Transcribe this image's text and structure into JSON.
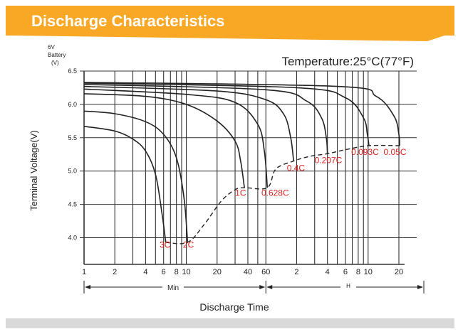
{
  "header": {
    "title": "Discharge Characteristics"
  },
  "chart_data": {
    "type": "line",
    "battery_label": [
      "6V",
      "Battery",
      "(V)"
    ],
    "temperature": "Temperature:25°C(77°F)",
    "ylabel": "Terminal Voltage(V)",
    "xlabel": "Discharge Time",
    "x_scale": "log",
    "y_ticks": [
      4.0,
      4.5,
      5.0,
      5.5,
      6.0,
      6.5
    ],
    "y_tick_labels": [
      "4.0",
      "4.5",
      "5.0",
      "5.5",
      "6.0",
      "6.5"
    ],
    "ylim": [
      3.6,
      6.5
    ],
    "x_ticks_min": [
      1,
      2,
      4,
      6,
      8,
      10,
      20,
      40,
      60,
      120,
      240,
      360,
      480,
      600,
      1200
    ],
    "x_tick_labels": [
      "1",
      "2",
      "4",
      "6",
      "8",
      "10",
      "20",
      "40",
      "60",
      "2",
      "4",
      "6",
      "8",
      "10",
      "20"
    ],
    "xlim_min": [
      1,
      1200
    ],
    "x_unit_labels": [
      "Min",
      "H"
    ],
    "grid": true,
    "grid_x_min": [
      1,
      2,
      3,
      4,
      5,
      6,
      7,
      8,
      9,
      10,
      20,
      30,
      40,
      50,
      60,
      120,
      180,
      240,
      300,
      360,
      420,
      480,
      540,
      600,
      1200
    ],
    "series": [
      {
        "name": "3C",
        "points": [
          [
            1,
            5.67
          ],
          [
            2,
            5.6
          ],
          [
            3,
            5.48
          ],
          [
            4,
            5.3
          ],
          [
            5,
            4.95
          ],
          [
            5.8,
            4.35
          ],
          [
            6.3,
            3.93
          ]
        ]
      },
      {
        "name": "2C",
        "points": [
          [
            1,
            5.9
          ],
          [
            2,
            5.86
          ],
          [
            4,
            5.74
          ],
          [
            6,
            5.55
          ],
          [
            8,
            5.2
          ],
          [
            9.5,
            4.6
          ],
          [
            10.3,
            3.93
          ]
        ]
      },
      {
        "name": "1C",
        "points": [
          [
            1,
            6.16
          ],
          [
            4,
            6.12
          ],
          [
            10,
            6.0
          ],
          [
            20,
            5.75
          ],
          [
            30,
            5.45
          ],
          [
            34,
            5.15
          ],
          [
            37,
            4.75
          ]
        ]
      },
      {
        "name": "0.628C",
        "points": [
          [
            1,
            6.23
          ],
          [
            10,
            6.15
          ],
          [
            30,
            6.03
          ],
          [
            50,
            5.7
          ],
          [
            58,
            5.3
          ],
          [
            62,
            4.75
          ]
        ]
      },
      {
        "name": "0.4C",
        "points": [
          [
            1,
            6.27
          ],
          [
            20,
            6.2
          ],
          [
            60,
            6.07
          ],
          [
            90,
            5.85
          ],
          [
            105,
            5.5
          ],
          [
            112,
            5.15
          ]
        ]
      },
      {
        "name": "0.207C",
        "points": [
          [
            1,
            6.3
          ],
          [
            60,
            6.22
          ],
          [
            150,
            6.05
          ],
          [
            210,
            5.8
          ],
          [
            234,
            5.5
          ],
          [
            240,
            5.26
          ]
        ]
      },
      {
        "name": "0.093C",
        "points": [
          [
            1,
            6.32
          ],
          [
            120,
            6.25
          ],
          [
            360,
            6.1
          ],
          [
            540,
            5.8
          ],
          [
            590,
            5.55
          ],
          [
            612,
            5.38
          ]
        ]
      },
      {
        "name": "0.05C",
        "points": [
          [
            1,
            6.33
          ],
          [
            300,
            6.27
          ],
          [
            720,
            6.12
          ],
          [
            1080,
            5.82
          ],
          [
            1200,
            5.55
          ],
          [
            1220,
            5.38
          ]
        ]
      }
    ],
    "end_voltage_curve": [
      [
        6.3,
        3.93
      ],
      [
        10.3,
        3.93
      ],
      [
        15,
        4.2
      ],
      [
        22,
        4.55
      ],
      [
        30,
        4.72
      ],
      [
        37,
        4.75
      ],
      [
        62,
        4.75
      ],
      [
        75,
        5.03
      ],
      [
        112,
        5.15
      ],
      [
        160,
        5.22
      ],
      [
        240,
        5.26
      ],
      [
        360,
        5.32
      ],
      [
        612,
        5.38
      ],
      [
        1220,
        5.38
      ]
    ],
    "labels": [
      {
        "text": "3C",
        "x": 6.2,
        "y": 3.85
      },
      {
        "text": "2C",
        "x": 10.5,
        "y": 3.85
      },
      {
        "text": "1C",
        "x": 34,
        "y": 4.63
      },
      {
        "text": "0.628C",
        "x": 74,
        "y": 4.63
      },
      {
        "text": "0.4C",
        "x": 118,
        "y": 5.0
      },
      {
        "text": "0.207C",
        "x": 245,
        "y": 5.12
      },
      {
        "text": "0.093C",
        "x": 560,
        "y": 5.24
      },
      {
        "text": "0.05C",
        "x": 1100,
        "y": 5.24
      }
    ],
    "colors": {
      "header": "#f9a825",
      "curve": "#222222",
      "label": "#e02020",
      "grid": "#333333"
    }
  }
}
